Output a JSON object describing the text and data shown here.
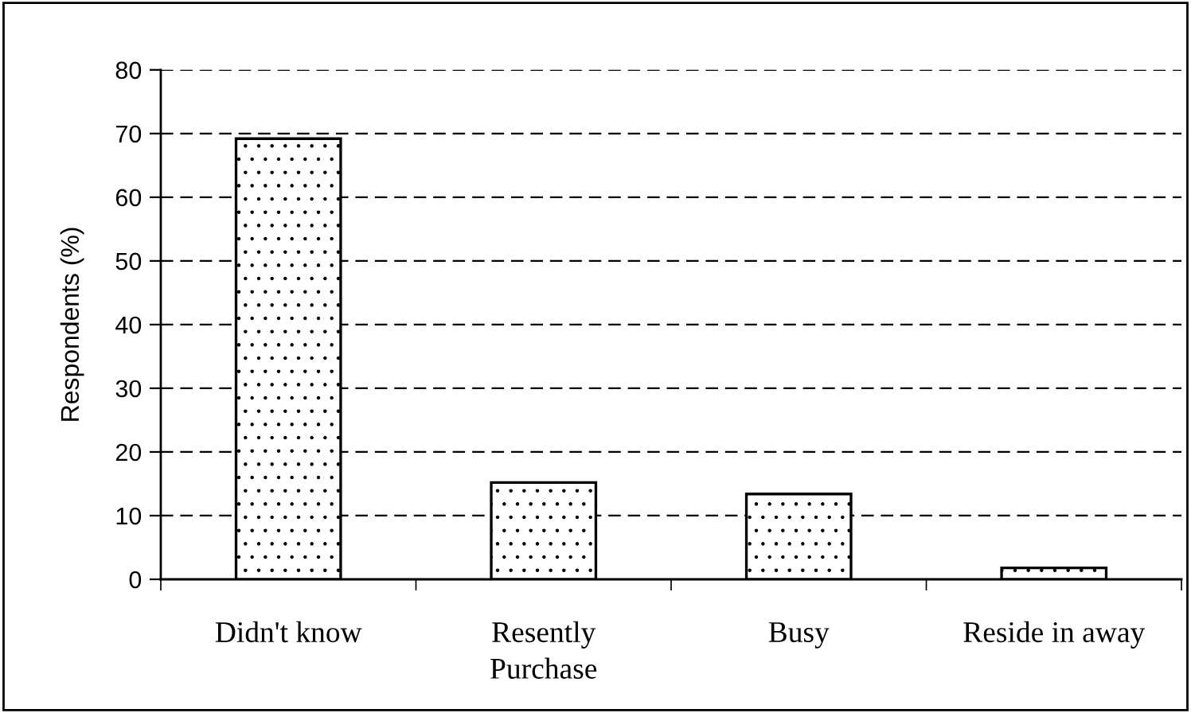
{
  "chart_data": {
    "type": "bar",
    "ylabel": "Respondents (%)",
    "categories": [
      "Didn't know",
      "Resently\nPurchase",
      "Busy",
      "Reside in away"
    ],
    "values": [
      69.2,
      15.2,
      13.4,
      1.8
    ],
    "color": "#000000",
    "ylim": [
      0,
      80
    ],
    "yticks": [
      0,
      10,
      20,
      30,
      40,
      50,
      60,
      70,
      80
    ],
    "grid": "y"
  }
}
